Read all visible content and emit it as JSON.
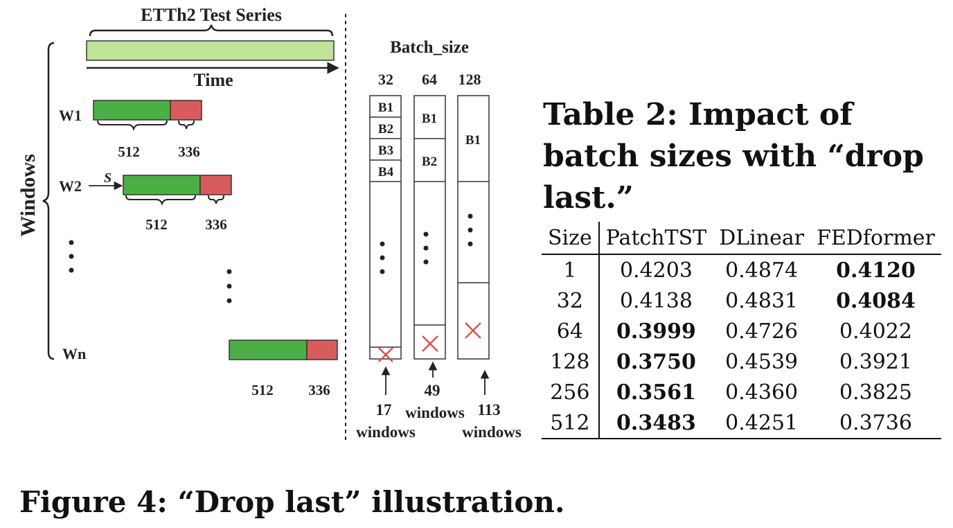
{
  "figure": {
    "series_title": "ETTh2 Test Series",
    "time_label": "Time",
    "windows_label": "Windows",
    "batch_size_label": "Batch_size",
    "stride_label": "S",
    "windows": [
      {
        "label": "W1",
        "lookback": "512",
        "horizon": "336"
      },
      {
        "label": "W2",
        "lookback": "512",
        "horizon": "336"
      },
      {
        "label": "Wn",
        "lookback": "512",
        "horizon": "336"
      }
    ],
    "batch_columns": [
      {
        "size": "32",
        "blocks": [
          "B1",
          "B2",
          "B3",
          "B4"
        ],
        "leftover_count": "17",
        "leftover_unit": "windows"
      },
      {
        "size": "64",
        "blocks": [
          "B1",
          "B2"
        ],
        "leftover_count": "49",
        "leftover_unit": "windows"
      },
      {
        "size": "128",
        "blocks": [
          "B1"
        ],
        "leftover_count": "113",
        "leftover_unit": "windows"
      }
    ],
    "colors": {
      "series_bar": "#c2e39a",
      "lookback": "#4caf46",
      "horizon": "#d95c5c",
      "drop_mark": "#d9534f"
    },
    "caption": "Figure 4: “Drop last” illustration."
  },
  "table": {
    "caption": "Table 2: Impact of batch sizes with “drop last.”",
    "columns": [
      "Size",
      "PatchTST",
      "DLinear",
      "FEDformer"
    ],
    "rows": [
      {
        "size": "1",
        "patchtst": "0.4203",
        "dlinear": "0.4874",
        "fedformer": "0.4120",
        "bold": "fedformer"
      },
      {
        "size": "32",
        "patchtst": "0.4138",
        "dlinear": "0.4831",
        "fedformer": "0.4084",
        "bold": "fedformer"
      },
      {
        "size": "64",
        "patchtst": "0.3999",
        "dlinear": "0.4726",
        "fedformer": "0.4022",
        "bold": "patchtst"
      },
      {
        "size": "128",
        "patchtst": "0.3750",
        "dlinear": "0.4539",
        "fedformer": "0.3921",
        "bold": "patchtst"
      },
      {
        "size": "256",
        "patchtst": "0.3561",
        "dlinear": "0.4360",
        "fedformer": "0.3825",
        "bold": "patchtst"
      },
      {
        "size": "512",
        "patchtst": "0.3483",
        "dlinear": "0.4251",
        "fedformer": "0.3736",
        "bold": "patchtst"
      }
    ]
  }
}
